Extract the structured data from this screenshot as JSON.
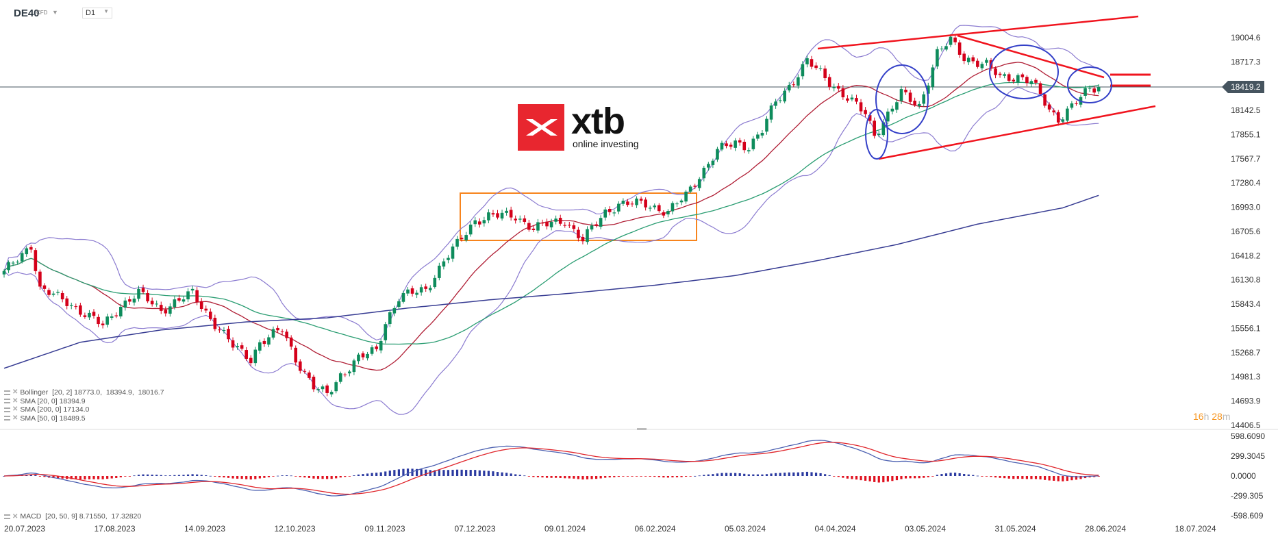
{
  "header": {
    "instrument": "DE40",
    "instrument_type": "CFD",
    "timeframe": "D1"
  },
  "current_price": "18419.2",
  "price_axis": [
    "19004.6",
    "18717.3",
    "18142.5",
    "17855.1",
    "17567.7",
    "17280.4",
    "16993.0",
    "16705.6",
    "16418.2",
    "16130.8",
    "15843.4",
    "15556.1",
    "15268.7",
    "14981.3",
    "14693.9",
    "14406.5"
  ],
  "macd_axis": [
    "598.6090",
    "299.3045",
    "0.0000",
    "-299.305",
    "-598.609"
  ],
  "date_axis": [
    "20.07.2023",
    "17.08.2023",
    "14.09.2023",
    "12.10.2023",
    "09.11.2023",
    "07.12.2023",
    "09.01.2024",
    "06.02.2024",
    "05.03.2024",
    "04.04.2024",
    "03.05.2024",
    "31.05.2024",
    "28.06.2024",
    "18.07.2024"
  ],
  "legend": [
    "Bollinger  [20, 2] 18773.0,  18394.9,  18016.7",
    "SMA [20, 0] 18394.9",
    "SMA [200, 0] 17134.0",
    "SMA [50, 0] 18489.5"
  ],
  "macd_legend": "MACD  [20, 50, 9] 8.71550,  17.32820",
  "countdown": {
    "hours": "16",
    "h": "h",
    "minutes": "28",
    "m": "m"
  },
  "logo": {
    "word": "xtb",
    "tagline": "online investing"
  },
  "colors": {
    "up": "#0e8c5c",
    "down": "#d4001a",
    "bollinger": "#8b7bd0",
    "sma20": "#b01e35",
    "sma50": "#2a9d72",
    "sma200": "#363b92",
    "macd": "#4a5fb0",
    "signal": "#e0252b",
    "hist_pos": "#2b3aa0",
    "hist_neg": "#e0101e",
    "annotation_red": "#f0141e",
    "annotation_blue": "#3440c8",
    "annotation_orange": "#f7841d"
  },
  "chart_data": {
    "type": "candlestick",
    "title": "",
    "y_range": [
      14406.5,
      19004.6
    ],
    "macd_range": [
      -598.609,
      598.609
    ],
    "close_keypoints": {
      "session": [
        0,
        6,
        8,
        14,
        22,
        26,
        30,
        35,
        42,
        46,
        51,
        55,
        57,
        62,
        65,
        69,
        72,
        75,
        79,
        83,
        85,
        88,
        94,
        98,
        101,
        105,
        108,
        114,
        118,
        125,
        129,
        134,
        137,
        143,
        148,
        152,
        155,
        159,
        163,
        166,
        169,
        172,
        175,
        179,
        181,
        184,
        188,
        192,
        194,
        197,
        200,
        204,
        208,
        211,
        214,
        219,
        222,
        226,
        229,
        233,
        235,
        238,
        242,
        244
      ],
      "close": [
        16213,
        16550,
        16020,
        15875,
        15585,
        15830,
        15970,
        15780,
        15970,
        15680,
        15344,
        15200,
        15390,
        15536,
        15200,
        14860,
        14764,
        15005,
        15200,
        15295,
        15633,
        15923,
        16020,
        16358,
        16550,
        16840,
        16890,
        16890,
        16744,
        16840,
        16600,
        16937,
        17033,
        17033,
        16937,
        17130,
        17372,
        17662,
        17758,
        17720,
        17903,
        18241,
        18434,
        18724,
        18627,
        18482,
        18290,
        18097,
        17855,
        18100,
        18338,
        18193,
        18821,
        18966,
        18773,
        18676,
        18531,
        18550,
        18482,
        18145,
        18048,
        18193,
        18387,
        18419.2
      ]
    },
    "sma200_keypoints": {
      "session": [
        0,
        17,
        35,
        54,
        72,
        90,
        108,
        126,
        145,
        163,
        181,
        199,
        217,
        236,
        244
      ],
      "value": [
        15083,
        15392,
        15537,
        15633,
        15681,
        15797,
        15894,
        15971,
        16068,
        16183,
        16357,
        16551,
        16793,
        16986,
        17134
      ]
    },
    "indicators": [
      "Bollinger [20, 2]",
      "SMA [20, 0]",
      "SMA [200, 0]",
      "SMA [50, 0]",
      "MACD [20, 50, 9]"
    ]
  }
}
